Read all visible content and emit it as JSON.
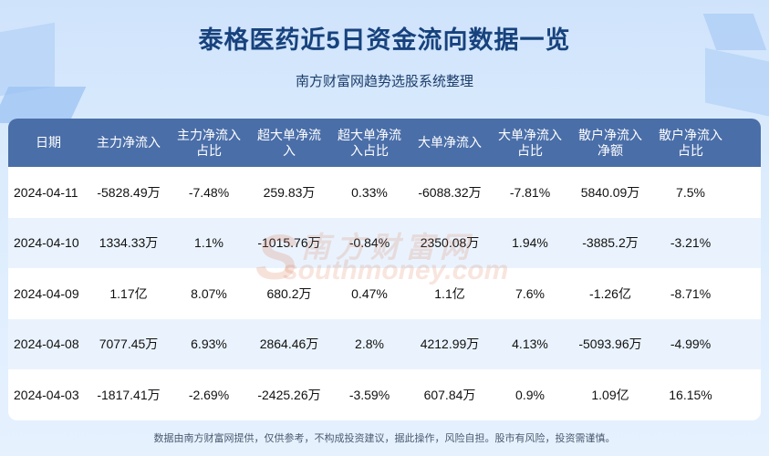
{
  "title": "泰格医药近5日资金流向数据一览",
  "subtitle": "南方财富网趋势选股系统整理",
  "table": {
    "headers": [
      "日期",
      "主力净流入",
      "主力净流入\n占比",
      "超大单净流\n入",
      "超大单净流\n入占比",
      "大单净流入",
      "大单净流入\n占比",
      "散户净流入\n净额",
      "散户净流入\n占比"
    ],
    "rows": [
      [
        "2024-04-11",
        "-5828.49万",
        "-7.48%",
        "259.83万",
        "0.33%",
        "-6088.32万",
        "-7.81%",
        "5840.09万",
        "7.5%"
      ],
      [
        "2024-04-10",
        "1334.33万",
        "1.1%",
        "-1015.76万",
        "-0.84%",
        "2350.08万",
        "1.94%",
        "-3885.2万",
        "-3.21%"
      ],
      [
        "2024-04-09",
        "1.17亿",
        "8.07%",
        "680.2万",
        "0.47%",
        "1.1亿",
        "7.6%",
        "-1.26亿",
        "-8.71%"
      ],
      [
        "2024-04-08",
        "7077.45万",
        "6.93%",
        "2864.46万",
        "2.8%",
        "4212.99万",
        "4.13%",
        "-5093.96万",
        "-4.99%"
      ],
      [
        "2024-04-03",
        "-1817.41万",
        "-2.69%",
        "-2425.26万",
        "-3.59%",
        "607.84万",
        "0.9%",
        "1.09亿",
        "16.15%"
      ]
    ]
  },
  "watermark": {
    "cn": "南方财富网",
    "en": "southmoney.com",
    "logo_letter": "S"
  },
  "footer": "数据由南方财富网提供，仅供参考，不构成投资建议，据此操作，风险自担。股市有风险，投资需谨慎。",
  "colors": {
    "header_bg": "#4a6ea8",
    "title": "#17427d",
    "row_alt": "#eaf3fd"
  }
}
